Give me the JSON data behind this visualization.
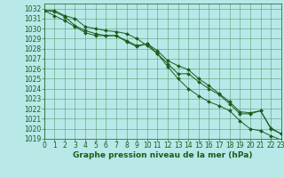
{
  "title": "Graphe pression niveau de la mer (hPa)",
  "background_color": "#b8e8e8",
  "grid_color": "#4a9a6a",
  "line_color": "#1a5c1a",
  "marker_color": "#1a5c1a",
  "x_values": [
    0,
    1,
    2,
    3,
    4,
    5,
    6,
    7,
    8,
    9,
    10,
    11,
    12,
    13,
    14,
    15,
    16,
    17,
    18,
    19,
    20,
    21,
    22,
    23
  ],
  "series1": [
    1031.8,
    1031.7,
    1031.2,
    1030.3,
    1029.8,
    1029.5,
    1029.3,
    1029.3,
    1028.7,
    1028.2,
    1028.5,
    1027.5,
    1026.5,
    1025.5,
    1025.5,
    1024.7,
    1024.0,
    1023.4,
    1022.5,
    1021.5,
    1021.5,
    1021.8,
    1020.0,
    1019.5
  ],
  "series2": [
    1031.8,
    1031.3,
    1030.8,
    1030.2,
    1029.6,
    1029.3,
    1029.3,
    1029.3,
    1028.8,
    1028.3,
    1028.5,
    1027.8,
    1026.8,
    1026.3,
    1025.9,
    1025.0,
    1024.3,
    1023.5,
    1022.7,
    1021.7,
    1021.6,
    1021.8,
    1020.1,
    1019.5
  ],
  "series3": [
    1031.8,
    1031.8,
    1031.3,
    1031.0,
    1030.2,
    1030.0,
    1029.8,
    1029.7,
    1029.5,
    1029.0,
    1028.3,
    1027.5,
    1026.2,
    1025.0,
    1024.0,
    1023.3,
    1022.7,
    1022.3,
    1021.8,
    1020.8,
    1020.0,
    1019.8,
    1019.3,
    1018.9
  ],
  "ylim": [
    1019.0,
    1032.5
  ],
  "xlim": [
    0,
    23
  ],
  "yticks": [
    1019,
    1020,
    1021,
    1022,
    1023,
    1024,
    1025,
    1026,
    1027,
    1028,
    1029,
    1030,
    1031,
    1032
  ],
  "xticks": [
    0,
    1,
    2,
    3,
    4,
    5,
    6,
    7,
    8,
    9,
    10,
    11,
    12,
    13,
    14,
    15,
    16,
    17,
    18,
    19,
    20,
    21,
    22,
    23
  ],
  "tick_fontsize": 5.5,
  "xlabel_fontsize": 6.5
}
